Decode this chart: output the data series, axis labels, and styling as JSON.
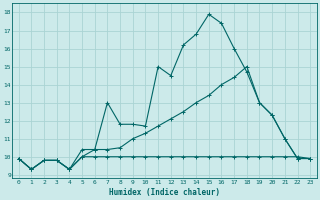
{
  "xlabel": "Humidex (Indice chaleur)",
  "xlim": [
    -0.5,
    23.5
  ],
  "ylim": [
    8.8,
    18.5
  ],
  "xticks": [
    0,
    1,
    2,
    3,
    4,
    5,
    6,
    7,
    8,
    9,
    10,
    11,
    12,
    13,
    14,
    15,
    16,
    17,
    18,
    19,
    20,
    21,
    22,
    23
  ],
  "yticks": [
    9,
    10,
    11,
    12,
    13,
    14,
    15,
    16,
    17,
    18
  ],
  "bg_color": "#cceaea",
  "grid_color": "#aad4d4",
  "line_color": "#006666",
  "line1_x": [
    0,
    1,
    2,
    3,
    4,
    5,
    6,
    7,
    8,
    9,
    10,
    11,
    12,
    13,
    14,
    15,
    16,
    17,
    18,
    19,
    20,
    21,
    22,
    23
  ],
  "line1_y": [
    9.9,
    9.3,
    9.8,
    9.8,
    9.3,
    10.0,
    10.0,
    10.0,
    10.0,
    10.0,
    10.0,
    10.0,
    10.0,
    10.0,
    10.0,
    10.0,
    10.0,
    10.0,
    10.0,
    10.0,
    10.0,
    10.0,
    10.0,
    9.9
  ],
  "line2_x": [
    0,
    1,
    2,
    3,
    4,
    5,
    6,
    7,
    8,
    9,
    10,
    11,
    12,
    13,
    14,
    15,
    16,
    17,
    18,
    19,
    20,
    21,
    22,
    23
  ],
  "line2_y": [
    9.9,
    9.3,
    9.8,
    9.8,
    9.3,
    10.4,
    10.4,
    13.0,
    11.8,
    11.8,
    11.7,
    15.0,
    14.5,
    16.2,
    16.8,
    17.9,
    17.4,
    16.0,
    14.7,
    13.0,
    12.3,
    11.0,
    9.9,
    9.9
  ],
  "line3_x": [
    0,
    1,
    2,
    3,
    4,
    5,
    6,
    7,
    8,
    9,
    10,
    11,
    12,
    13,
    14,
    15,
    16,
    17,
    18,
    19,
    20,
    21,
    22,
    23
  ],
  "line3_y": [
    9.9,
    9.3,
    9.8,
    9.8,
    9.3,
    10.0,
    10.4,
    10.4,
    10.5,
    11.0,
    11.3,
    11.7,
    12.1,
    12.5,
    13.0,
    13.4,
    14.0,
    14.4,
    15.0,
    13.0,
    12.3,
    11.0,
    9.9,
    9.9
  ]
}
